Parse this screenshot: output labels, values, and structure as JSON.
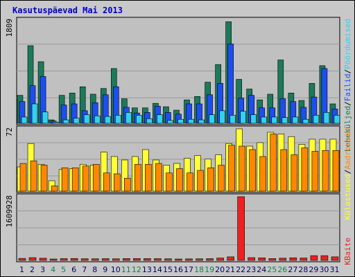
{
  "title": "Kasutuspäevad Mai 2013",
  "colors": {
    "pages": "#1b7a5a",
    "files": "#1d4ef0",
    "hits": "#33d0f0",
    "visits": "#ffff33",
    "sites": "#ff8800",
    "kbytes": "#ee2020",
    "grid": "#9a9a9a",
    "panel": "#c0c0c0",
    "weekend": "#108050",
    "weekday": "#000060"
  },
  "legend": {
    "panel1": [
      {
        "text": "Leheküljed",
        "color": "#1b7a5a"
      },
      {
        "text": "Failid",
        "color": "#1d4ef0"
      },
      {
        "text": "Pöördumised",
        "color": "#33d0f0"
      }
    ],
    "panel2": [
      {
        "text": "Külastused",
        "color": "#ffff33"
      },
      {
        "text": "Aadressid",
        "color": "#ff8800"
      }
    ],
    "panel3": "KBaite"
  },
  "chart_data": [
    {
      "type": "bar",
      "panel": "top",
      "y_max_label": "1809",
      "ylim": [
        0,
        1809
      ],
      "categories": [
        "1",
        "2",
        "3",
        "4",
        "5",
        "6",
        "7",
        "8",
        "9",
        "10",
        "11",
        "12",
        "13",
        "14",
        "15",
        "16",
        "17",
        "18",
        "19",
        "20",
        "21",
        "22",
        "23",
        "24",
        "25",
        "26",
        "27",
        "28",
        "29",
        "30",
        "31"
      ],
      "weekend_days": [
        "4",
        "5",
        "11",
        "12",
        "18",
        "19",
        "25",
        "26"
      ],
      "series": [
        {
          "name": "Leheküljed",
          "values": [
            490,
            1360,
            1080,
            60,
            490,
            530,
            640,
            510,
            610,
            960,
            430,
            270,
            270,
            350,
            290,
            230,
            410,
            470,
            720,
            1030,
            1780,
            770,
            600,
            410,
            510,
            1110,
            530,
            400,
            700,
            1010,
            340
          ]
        },
        {
          "name": "Failid",
          "values": [
            380,
            660,
            820,
            40,
            320,
            340,
            220,
            360,
            500,
            640,
            280,
            180,
            190,
            300,
            190,
            160,
            340,
            340,
            500,
            700,
            1390,
            440,
            490,
            270,
            270,
            430,
            380,
            280,
            460,
            960,
            250
          ]
        },
        {
          "name": "Pöördumised",
          "values": [
            110,
            340,
            200,
            20,
            60,
            90,
            150,
            130,
            120,
            140,
            190,
            140,
            80,
            150,
            50,
            70,
            70,
            60,
            150,
            220,
            140,
            210,
            150,
            110,
            110,
            100,
            110,
            70,
            140,
            190,
            140
          ]
        }
      ]
    },
    {
      "type": "bar",
      "panel": "middle",
      "y_max_label": "72",
      "ylim": [
        0,
        72
      ],
      "series": [
        {
          "name": "Külastused",
          "values": [
            28,
            55,
            31,
            12,
            25,
            26,
            31,
            30,
            45,
            40,
            36,
            40,
            48,
            36,
            30,
            32,
            38,
            41,
            37,
            42,
            55,
            72,
            52,
            56,
            68,
            66,
            63,
            54,
            60,
            60,
            60
          ]
        },
        {
          "name": "Aadressid",
          "values": [
            32,
            35,
            30,
            6,
            27,
            27,
            29,
            31,
            21,
            20,
            15,
            31,
            31,
            32,
            21,
            26,
            21,
            24,
            27,
            30,
            53,
            52,
            48,
            40,
            66,
            48,
            42,
            50,
            46,
            47,
            47
          ]
        }
      ]
    },
    {
      "type": "bar",
      "panel": "bottom",
      "y_max_label": "1609928",
      "ylim": [
        0,
        1609928
      ],
      "series": [
        {
          "name": "KBaite",
          "values": [
            50000,
            70000,
            55000,
            20000,
            45000,
            48000,
            42000,
            40000,
            44000,
            40000,
            46000,
            48000,
            46000,
            44000,
            40000,
            30000,
            38000,
            40000,
            44000,
            60000,
            90000,
            1609928,
            70000,
            64000,
            46000,
            56000,
            66000,
            60000,
            120000,
            120000,
            90000
          ]
        }
      ]
    }
  ]
}
